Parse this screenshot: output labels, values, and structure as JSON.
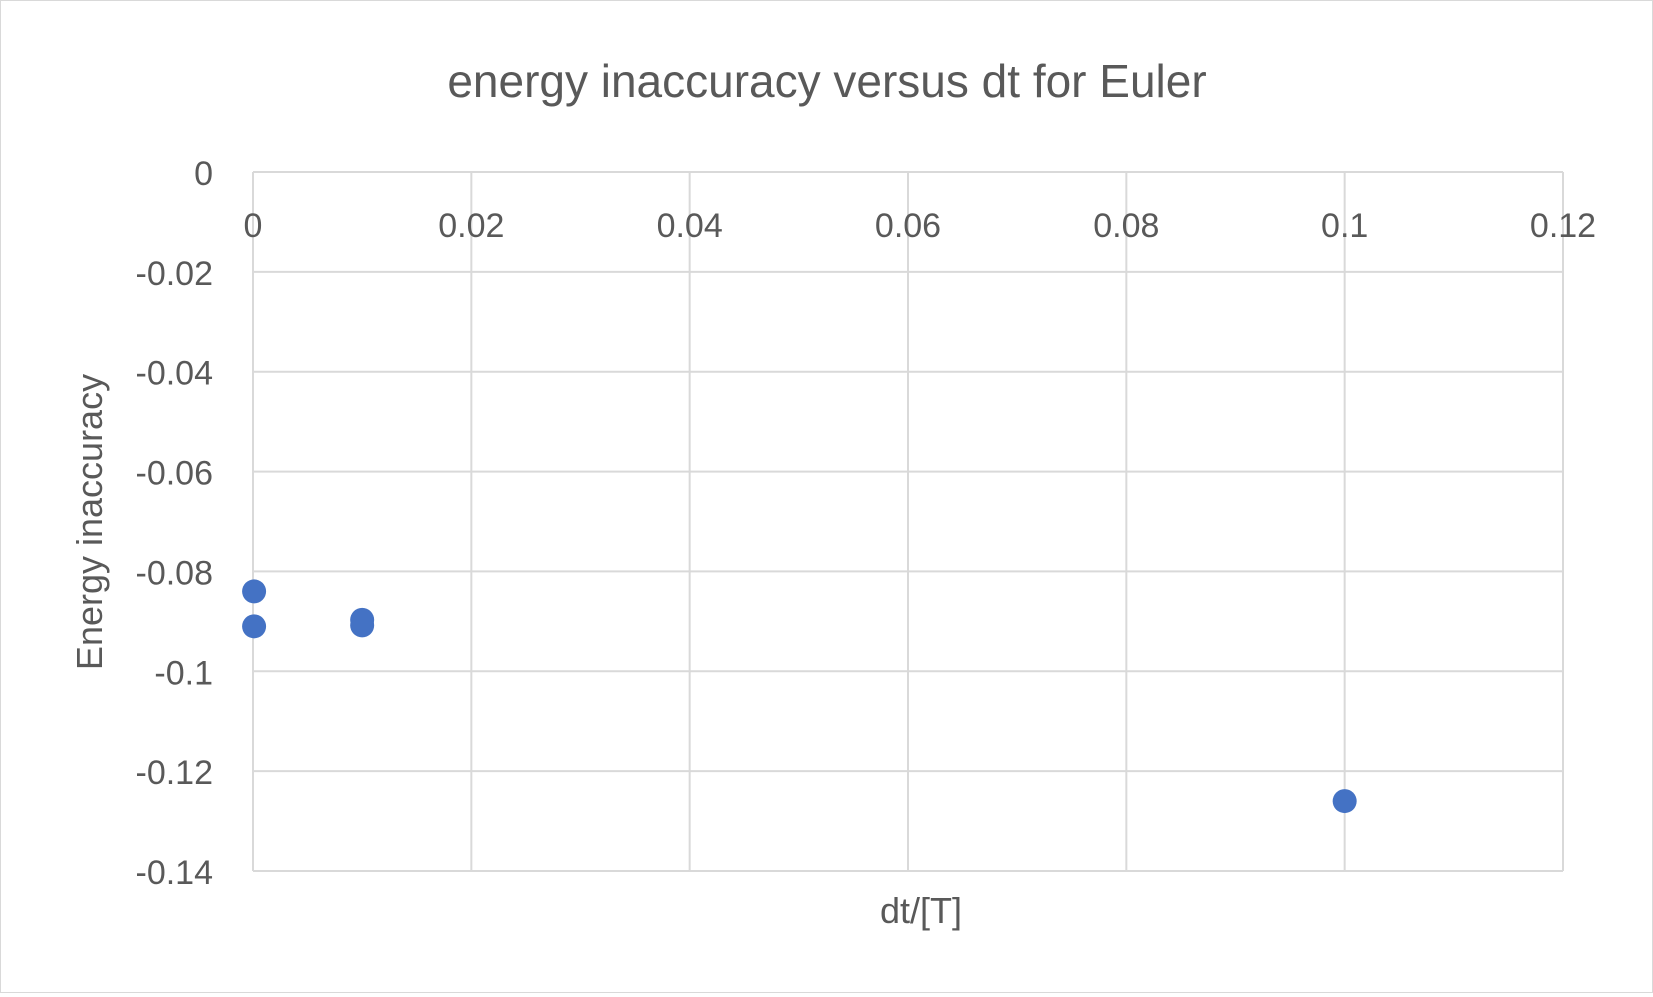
{
  "chart_data": {
    "type": "scatter",
    "title": "energy inaccuracy versus dt for Euler",
    "xlabel": "dt/[T]",
    "ylabel": "Energy inaccuracy",
    "xlim": [
      0,
      0.12
    ],
    "ylim": [
      -0.14,
      0
    ],
    "x_ticks": [
      0,
      0.02,
      0.04,
      0.06,
      0.08,
      0.1,
      0.12
    ],
    "y_ticks": [
      0,
      -0.02,
      -0.04,
      -0.06,
      -0.08,
      -0.1,
      -0.12,
      -0.14
    ],
    "x_tick_labels": [
      "0",
      "0.02",
      "0.04",
      "0.06",
      "0.08",
      "0.1",
      "0.12"
    ],
    "y_tick_labels": [
      "0",
      "-0.02",
      "-0.04",
      "-0.06",
      "-0.08",
      "-0.1",
      "-0.12",
      "-0.14"
    ],
    "grid": true,
    "legend": "none",
    "marker_color": "#4472C4",
    "series": [
      {
        "points": [
          {
            "x": 0.0001,
            "y": -0.084
          },
          {
            "x": 0.0001,
            "y": -0.091
          },
          {
            "x": 0.01,
            "y": -0.0897
          },
          {
            "x": 0.01,
            "y": -0.0908
          },
          {
            "x": 0.1,
            "y": -0.126
          }
        ]
      }
    ]
  }
}
